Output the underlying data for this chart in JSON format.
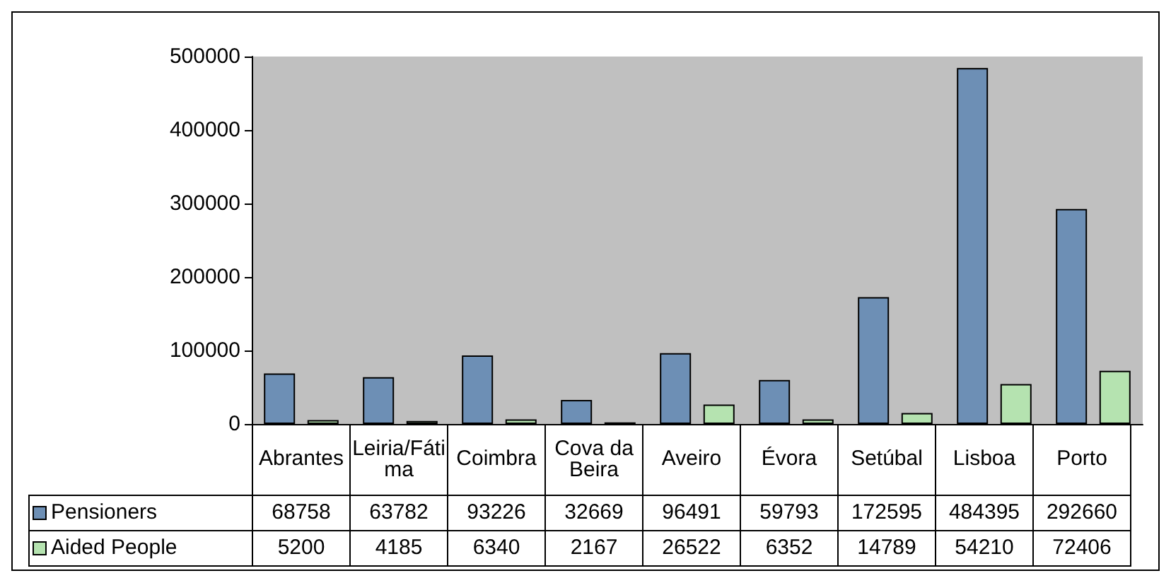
{
  "chart_data": {
    "type": "bar",
    "categories": [
      "Abrantes",
      "Leiria/Fátima",
      "Coimbra",
      "Cova da Beira",
      "Aveiro",
      "Évora",
      "Setúbal",
      "Lisboa",
      "Porto"
    ],
    "series": [
      {
        "name": "Pensioners",
        "color": "#6d8fb5",
        "values": [
          68758,
          63782,
          93226,
          32669,
          96491,
          59793,
          172595,
          484395,
          292660
        ]
      },
      {
        "name": "Aided People",
        "color": "#b5e3b0",
        "values": [
          5200,
          4185,
          6340,
          2167,
          26522,
          6352,
          14789,
          54210,
          72406
        ]
      }
    ],
    "ylim": [
      0,
      500000
    ],
    "yticks": [
      0,
      100000,
      200000,
      300000,
      400000,
      500000
    ],
    "grid": false,
    "legend": "bottom left",
    "data_labels": true
  }
}
